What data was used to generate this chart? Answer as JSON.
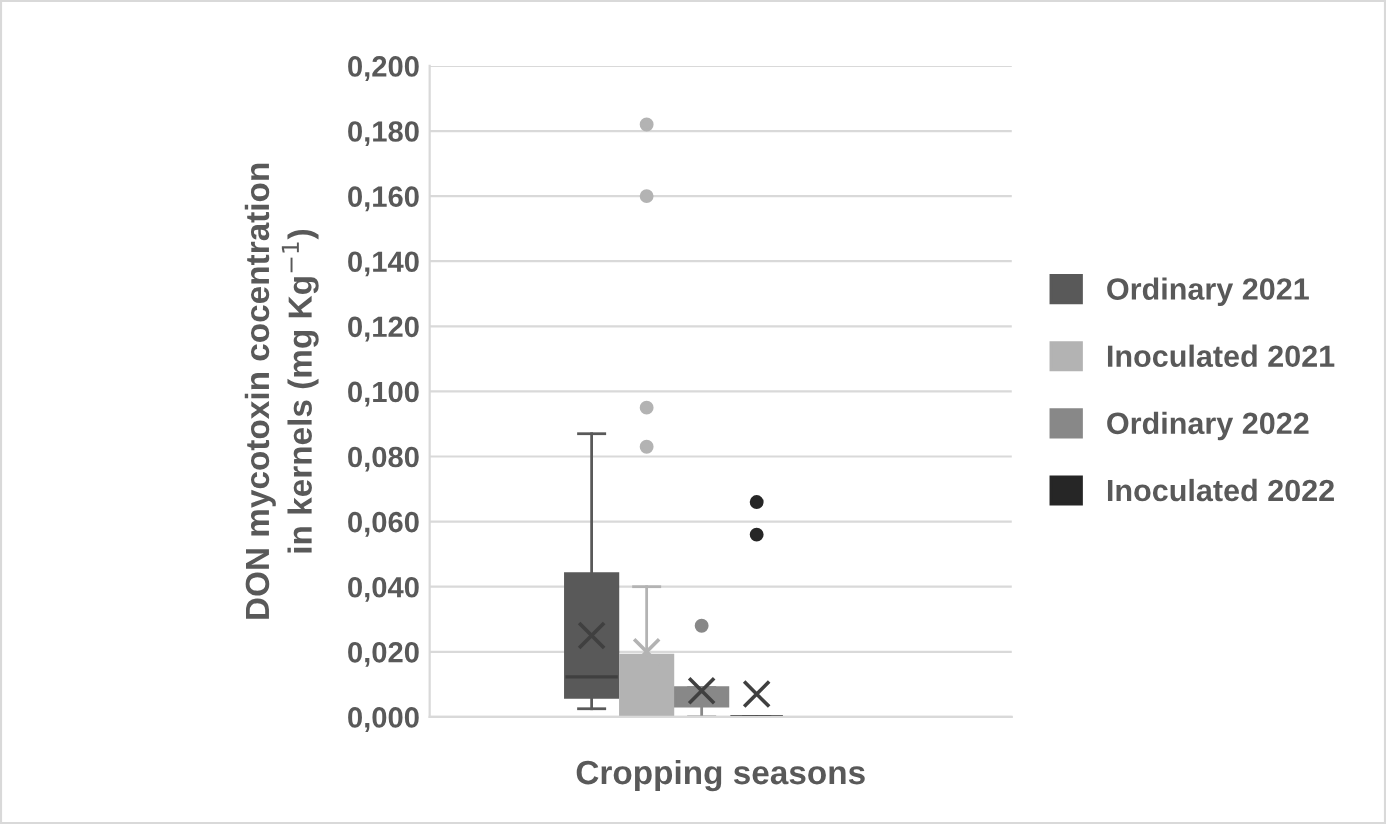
{
  "chart_data": {
    "type": "box",
    "xlabel": "Cropping seasons",
    "ylabel": "DON mycotoxin cocentration\nin kernels (mg Kg$^{−1}$)",
    "categories": [
      null
    ],
    "ylim": [
      0,
      0.2
    ],
    "yticks": [
      {
        "value": 0,
        "label": "0,000"
      },
      {
        "value": 0.02,
        "label": "0,020"
      },
      {
        "value": 0.04,
        "label": "0,040"
      },
      {
        "value": 0.06,
        "label": "0,060"
      },
      {
        "value": 0.08,
        "label": "0,080"
      },
      {
        "value": 0.1,
        "label": "0,100"
      },
      {
        "value": 0.12,
        "label": "0,120"
      },
      {
        "value": 0.14,
        "label": "0,140"
      },
      {
        "value": 0.16,
        "label": "0,160"
      },
      {
        "value": 0.18,
        "label": "0,180"
      },
      {
        "value": 0.2,
        "label": "0,200"
      }
    ],
    "grid": "y",
    "legend": "right",
    "series": [
      {
        "name": "Ordinary 2021",
        "color": "#595959",
        "boxes": [
          {
            "low": 0.0025,
            "q1": 0.006,
            "median": 0.0123,
            "q3": 0.044,
            "high": 0.087,
            "mean": 0.025
          }
        ]
      },
      {
        "name": "Inoculated 2021",
        "color": "#b3b3b3",
        "boxes": [
          {
            "low": 0,
            "q1": 0,
            "median": 0,
            "q3": 0.019,
            "high": 0.04,
            "mean": 0.02,
            "outliers": [
              0.182,
              0.16,
              0.095,
              0.083
            ]
          }
        ]
      },
      {
        "name": "Ordinary 2022",
        "color": "#888888",
        "boxes": [
          {
            "low": 0,
            "q1": 0.0033,
            "median": 0.0075,
            "q3": 0.009,
            "high": 0.009,
            "mean": 0.008,
            "outliers": [
              0.028
            ]
          }
        ]
      },
      {
        "name": "Inoculated 2022",
        "color": "#262626",
        "boxes": [
          {
            "low": 0,
            "q1": 0,
            "median": 0,
            "q3": 0,
            "high": 0,
            "mean": 0.007,
            "outliers": [
              0.066,
              0.056
            ]
          }
        ]
      }
    ]
  }
}
